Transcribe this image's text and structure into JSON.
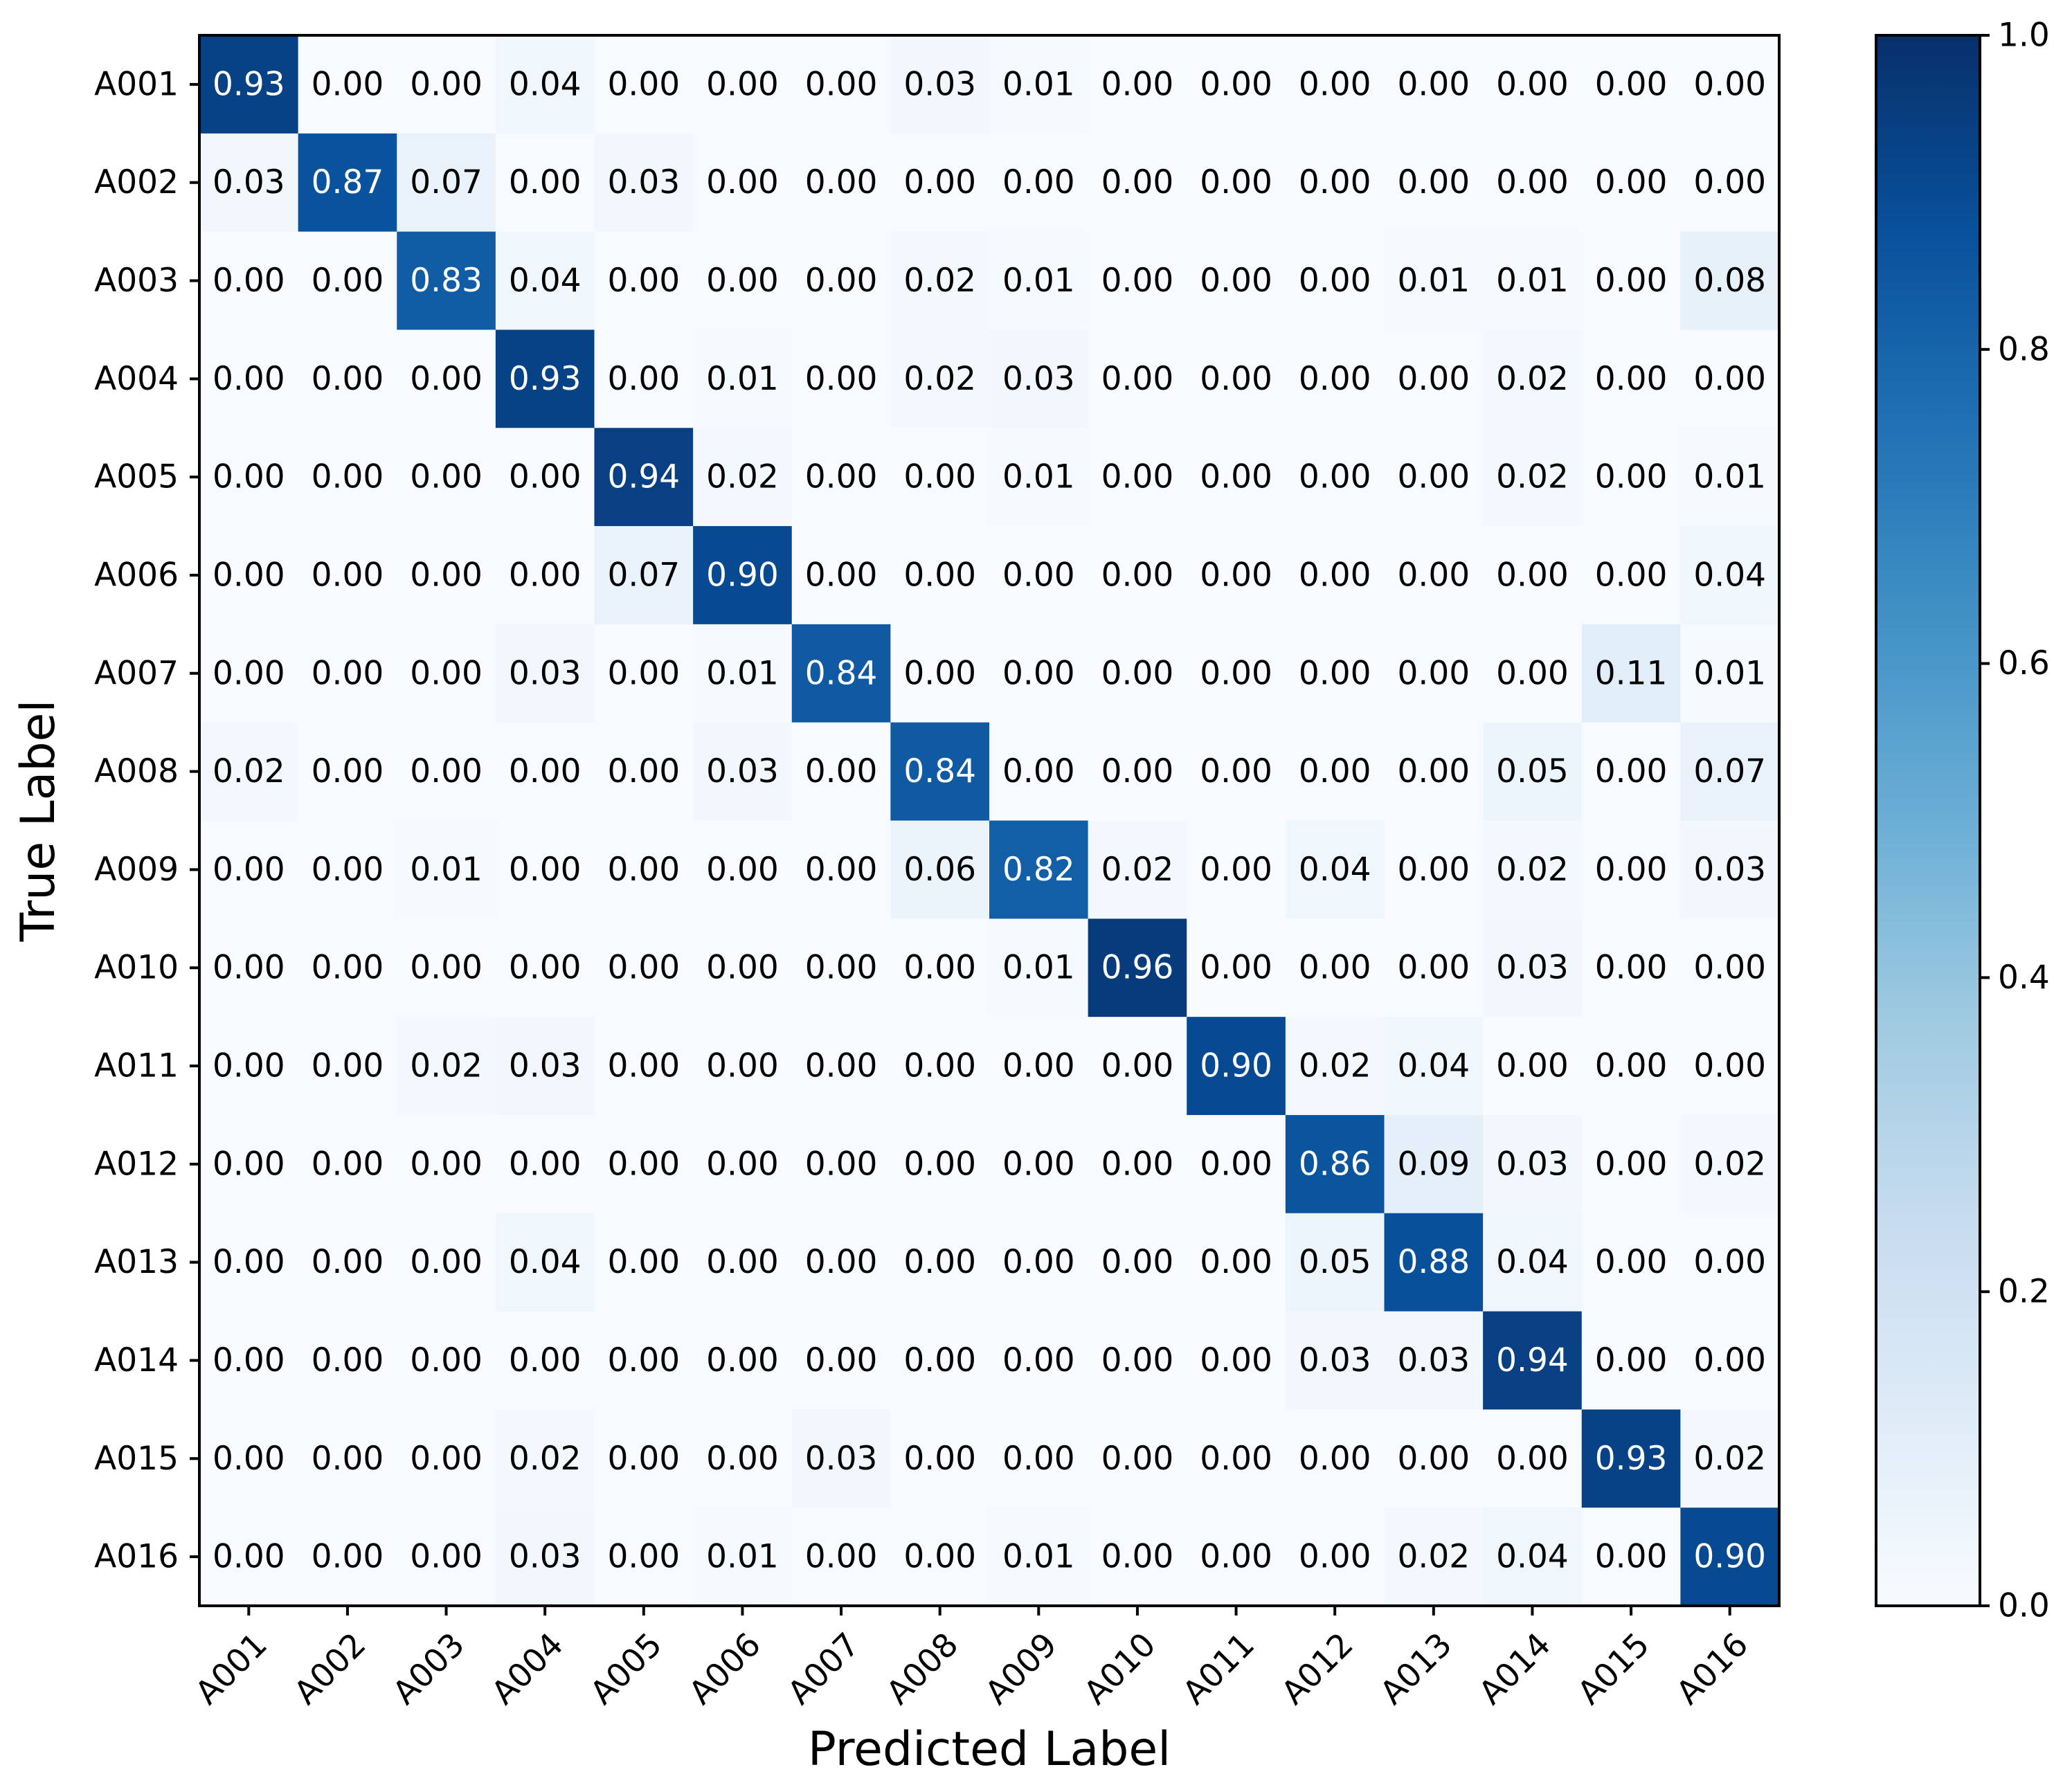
{
  "chart_data": {
    "type": "heatmap",
    "title": "",
    "xlabel": "Predicted Label",
    "ylabel": "True Label",
    "x_categories": [
      "A001",
      "A002",
      "A003",
      "A004",
      "A005",
      "A006",
      "A007",
      "A008",
      "A009",
      "A010",
      "A011",
      "A012",
      "A013",
      "A014",
      "A015",
      "A016"
    ],
    "y_categories": [
      "A001",
      "A002",
      "A003",
      "A004",
      "A005",
      "A006",
      "A007",
      "A008",
      "A009",
      "A010",
      "A011",
      "A012",
      "A013",
      "A014",
      "A015",
      "A016"
    ],
    "values": [
      [
        0.93,
        0.0,
        0.0,
        0.04,
        0.0,
        0.0,
        0.0,
        0.03,
        0.01,
        0.0,
        0.0,
        0.0,
        0.0,
        0.0,
        0.0,
        0.0
      ],
      [
        0.03,
        0.87,
        0.07,
        0.0,
        0.03,
        0.0,
        0.0,
        0.0,
        0.0,
        0.0,
        0.0,
        0.0,
        0.0,
        0.0,
        0.0,
        0.0
      ],
      [
        0.0,
        0.0,
        0.83,
        0.04,
        0.0,
        0.0,
        0.0,
        0.02,
        0.01,
        0.0,
        0.0,
        0.0,
        0.01,
        0.01,
        0.0,
        0.08
      ],
      [
        0.0,
        0.0,
        0.0,
        0.93,
        0.0,
        0.01,
        0.0,
        0.02,
        0.03,
        0.0,
        0.0,
        0.0,
        0.0,
        0.02,
        0.0,
        0.0
      ],
      [
        0.0,
        0.0,
        0.0,
        0.0,
        0.94,
        0.02,
        0.0,
        0.0,
        0.01,
        0.0,
        0.0,
        0.0,
        0.0,
        0.02,
        0.0,
        0.01
      ],
      [
        0.0,
        0.0,
        0.0,
        0.0,
        0.07,
        0.9,
        0.0,
        0.0,
        0.0,
        0.0,
        0.0,
        0.0,
        0.0,
        0.0,
        0.0,
        0.04
      ],
      [
        0.0,
        0.0,
        0.0,
        0.03,
        0.0,
        0.01,
        0.84,
        0.0,
        0.0,
        0.0,
        0.0,
        0.0,
        0.0,
        0.0,
        0.11,
        0.01
      ],
      [
        0.02,
        0.0,
        0.0,
        0.0,
        0.0,
        0.03,
        0.0,
        0.84,
        0.0,
        0.0,
        0.0,
        0.0,
        0.0,
        0.05,
        0.0,
        0.07
      ],
      [
        0.0,
        0.0,
        0.01,
        0.0,
        0.0,
        0.0,
        0.0,
        0.06,
        0.82,
        0.02,
        0.0,
        0.04,
        0.0,
        0.02,
        0.0,
        0.03
      ],
      [
        0.0,
        0.0,
        0.0,
        0.0,
        0.0,
        0.0,
        0.0,
        0.0,
        0.01,
        0.96,
        0.0,
        0.0,
        0.0,
        0.03,
        0.0,
        0.0
      ],
      [
        0.0,
        0.0,
        0.02,
        0.03,
        0.0,
        0.0,
        0.0,
        0.0,
        0.0,
        0.0,
        0.9,
        0.02,
        0.04,
        0.0,
        0.0,
        0.0
      ],
      [
        0.0,
        0.0,
        0.0,
        0.0,
        0.0,
        0.0,
        0.0,
        0.0,
        0.0,
        0.0,
        0.0,
        0.86,
        0.09,
        0.03,
        0.0,
        0.02
      ],
      [
        0.0,
        0.0,
        0.0,
        0.04,
        0.0,
        0.0,
        0.0,
        0.0,
        0.0,
        0.0,
        0.0,
        0.05,
        0.88,
        0.04,
        0.0,
        0.0
      ],
      [
        0.0,
        0.0,
        0.0,
        0.0,
        0.0,
        0.0,
        0.0,
        0.0,
        0.0,
        0.0,
        0.0,
        0.03,
        0.03,
        0.94,
        0.0,
        0.0
      ],
      [
        0.0,
        0.0,
        0.0,
        0.02,
        0.0,
        0.0,
        0.03,
        0.0,
        0.0,
        0.0,
        0.0,
        0.0,
        0.0,
        0.0,
        0.93,
        0.02
      ],
      [
        0.0,
        0.0,
        0.0,
        0.03,
        0.0,
        0.01,
        0.0,
        0.0,
        0.01,
        0.0,
        0.0,
        0.0,
        0.02,
        0.04,
        0.0,
        0.9
      ]
    ],
    "value_format": "2 decimals",
    "colorscale": "Blues",
    "colors": {
      "low": "#f7fbff",
      "high": "#08306b",
      "text_light": "#ffffff",
      "text_dark": "#000000"
    },
    "colorbar": {
      "range": [
        0.0,
        1.0
      ],
      "ticks": [
        "0.0",
        "0.2",
        "0.4",
        "0.6",
        "0.8",
        "1.0"
      ],
      "placement": "right"
    },
    "grid": false,
    "legend": "none"
  }
}
